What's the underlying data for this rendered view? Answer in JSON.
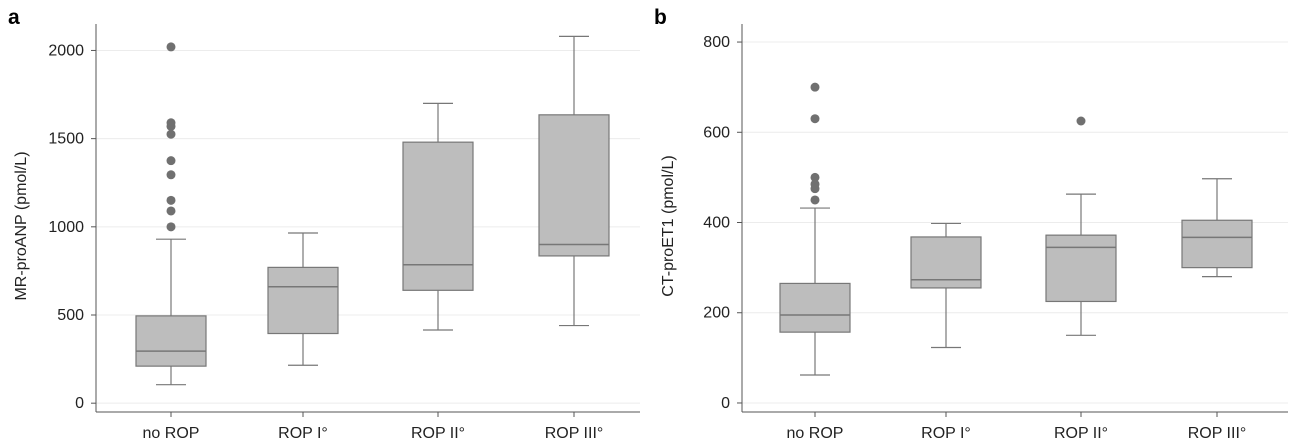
{
  "chart_data": [
    {
      "panel_label": "a",
      "type": "box",
      "ylabel": "MR-proANP (pmol/L)",
      "ylim": [
        -50,
        2150
      ],
      "yticks": [
        0,
        500,
        1000,
        1500,
        2000
      ],
      "grid": true,
      "categories": [
        "no ROP",
        "ROP I°",
        "ROP II°",
        "ROP III°"
      ],
      "boxes": [
        {
          "category": "no ROP",
          "whisker_low": 105,
          "q1": 210,
          "median": 295,
          "q3": 495,
          "whisker_high": 930,
          "outliers": [
            1000,
            1090,
            1150,
            1295,
            1375,
            1525,
            1570,
            1590,
            2020
          ]
        },
        {
          "category": "ROP I°",
          "whisker_low": 215,
          "q1": 395,
          "median": 660,
          "q3": 770,
          "whisker_high": 965,
          "outliers": []
        },
        {
          "category": "ROP II°",
          "whisker_low": 415,
          "q1": 640,
          "median": 785,
          "q3": 1480,
          "whisker_high": 1700,
          "outliers": []
        },
        {
          "category": "ROP III°",
          "whisker_low": 440,
          "q1": 835,
          "median": 900,
          "q3": 1635,
          "whisker_high": 2080,
          "outliers": []
        }
      ]
    },
    {
      "panel_label": "b",
      "type": "box",
      "ylabel": "CT-proET1 (pmol/L)",
      "ylim": [
        -20,
        840
      ],
      "yticks": [
        0,
        200,
        400,
        600,
        800
      ],
      "grid": true,
      "categories": [
        "no ROP",
        "ROP I°",
        "ROP II°",
        "ROP III°"
      ],
      "boxes": [
        {
          "category": "no ROP",
          "whisker_low": 62,
          "q1": 157,
          "median": 195,
          "q3": 265,
          "whisker_high": 432,
          "outliers": [
            450,
            475,
            485,
            500,
            630,
            700
          ]
        },
        {
          "category": "ROP I°",
          "whisker_low": 123,
          "q1": 255,
          "median": 273,
          "q3": 368,
          "whisker_high": 398,
          "outliers": []
        },
        {
          "category": "ROP II°",
          "whisker_low": 150,
          "q1": 225,
          "median": 345,
          "q3": 372,
          "whisker_high": 463,
          "outliers": [
            625
          ]
        },
        {
          "category": "ROP III°",
          "whisker_low": 280,
          "q1": 300,
          "median": 367,
          "q3": 405,
          "whisker_high": 497,
          "outliers": []
        }
      ]
    }
  ]
}
